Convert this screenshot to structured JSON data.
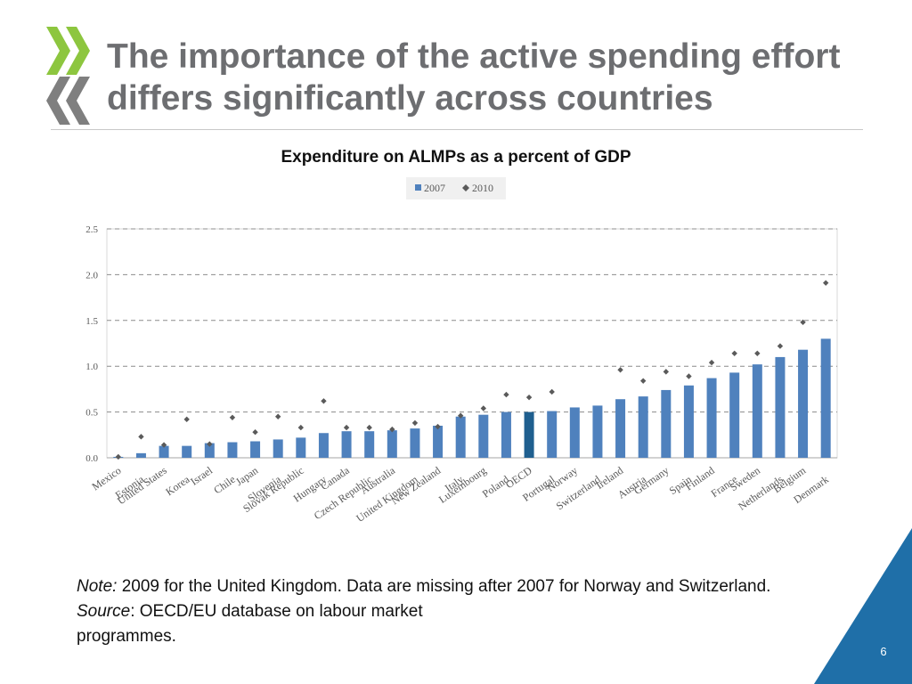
{
  "slide": {
    "title_line1": "The importance of the active spending effort",
    "title_line2": "differs significantly across countries",
    "page_number": "6"
  },
  "note": {
    "note_label": "Note:",
    "note_text": " 2009 for the United Kingdom. Data are missing after 2007 for Norway and Switzerland.",
    "source_label": "Source",
    "source_text": ": OECD/EU database on labour market programmes."
  },
  "colors": {
    "bar": "#4f81bd",
    "bar_highlight": "#1f5f8f",
    "marker": "#5a5a5a",
    "logo_green": "#8dc63f",
    "logo_grey": "#7f7f7f",
    "corner_blue": "#1f6fa8"
  },
  "chart_data": {
    "type": "bar",
    "title": "Expenditure on ALMPs as a percent of GDP",
    "xlabel": "",
    "ylabel": "",
    "ylim": [
      0,
      2.5
    ],
    "yticks": [
      "0.0",
      "0.5",
      "1.0",
      "1.5",
      "2.0",
      "2.5"
    ],
    "grid": true,
    "legend_position": "top-center",
    "highlight_category": "OECD",
    "categories": [
      "Mexico",
      "Estonia",
      "United States",
      "Korea",
      "Israel",
      "Chile",
      "Japan",
      "Slovenia",
      "Slovak Republic",
      "Hungary",
      "Canada",
      "Czech Republic",
      "Australia",
      "United Kingdom",
      "New Zealand",
      "Italy",
      "Luxembourg",
      "Poland",
      "OECD",
      "Portugal",
      "Norway",
      "Switzerland",
      "Ireland",
      "Austria",
      "Germany",
      "Spain",
      "Finland",
      "France",
      "Sweden",
      "Netherlands",
      "Belgium",
      "Denmark"
    ],
    "series": [
      {
        "name": "2007",
        "kind": "bar",
        "values": [
          0.01,
          0.05,
          0.13,
          0.13,
          0.16,
          0.17,
          0.18,
          0.2,
          0.22,
          0.27,
          0.29,
          0.29,
          0.3,
          0.32,
          0.35,
          0.45,
          0.47,
          0.5,
          0.5,
          0.51,
          0.55,
          0.57,
          0.64,
          0.67,
          0.74,
          0.79,
          0.87,
          0.93,
          1.02,
          1.1,
          1.18,
          1.3
        ]
      },
      {
        "name": "2010",
        "kind": "marker",
        "values": [
          0.01,
          0.23,
          0.14,
          0.42,
          0.15,
          0.44,
          0.28,
          0.45,
          0.33,
          0.62,
          0.33,
          0.33,
          0.31,
          0.38,
          0.34,
          0.46,
          0.54,
          0.69,
          0.66,
          0.72,
          null,
          null,
          0.96,
          0.84,
          0.94,
          0.89,
          1.04,
          1.14,
          1.14,
          1.22,
          1.48,
          1.91
        ]
      }
    ]
  }
}
